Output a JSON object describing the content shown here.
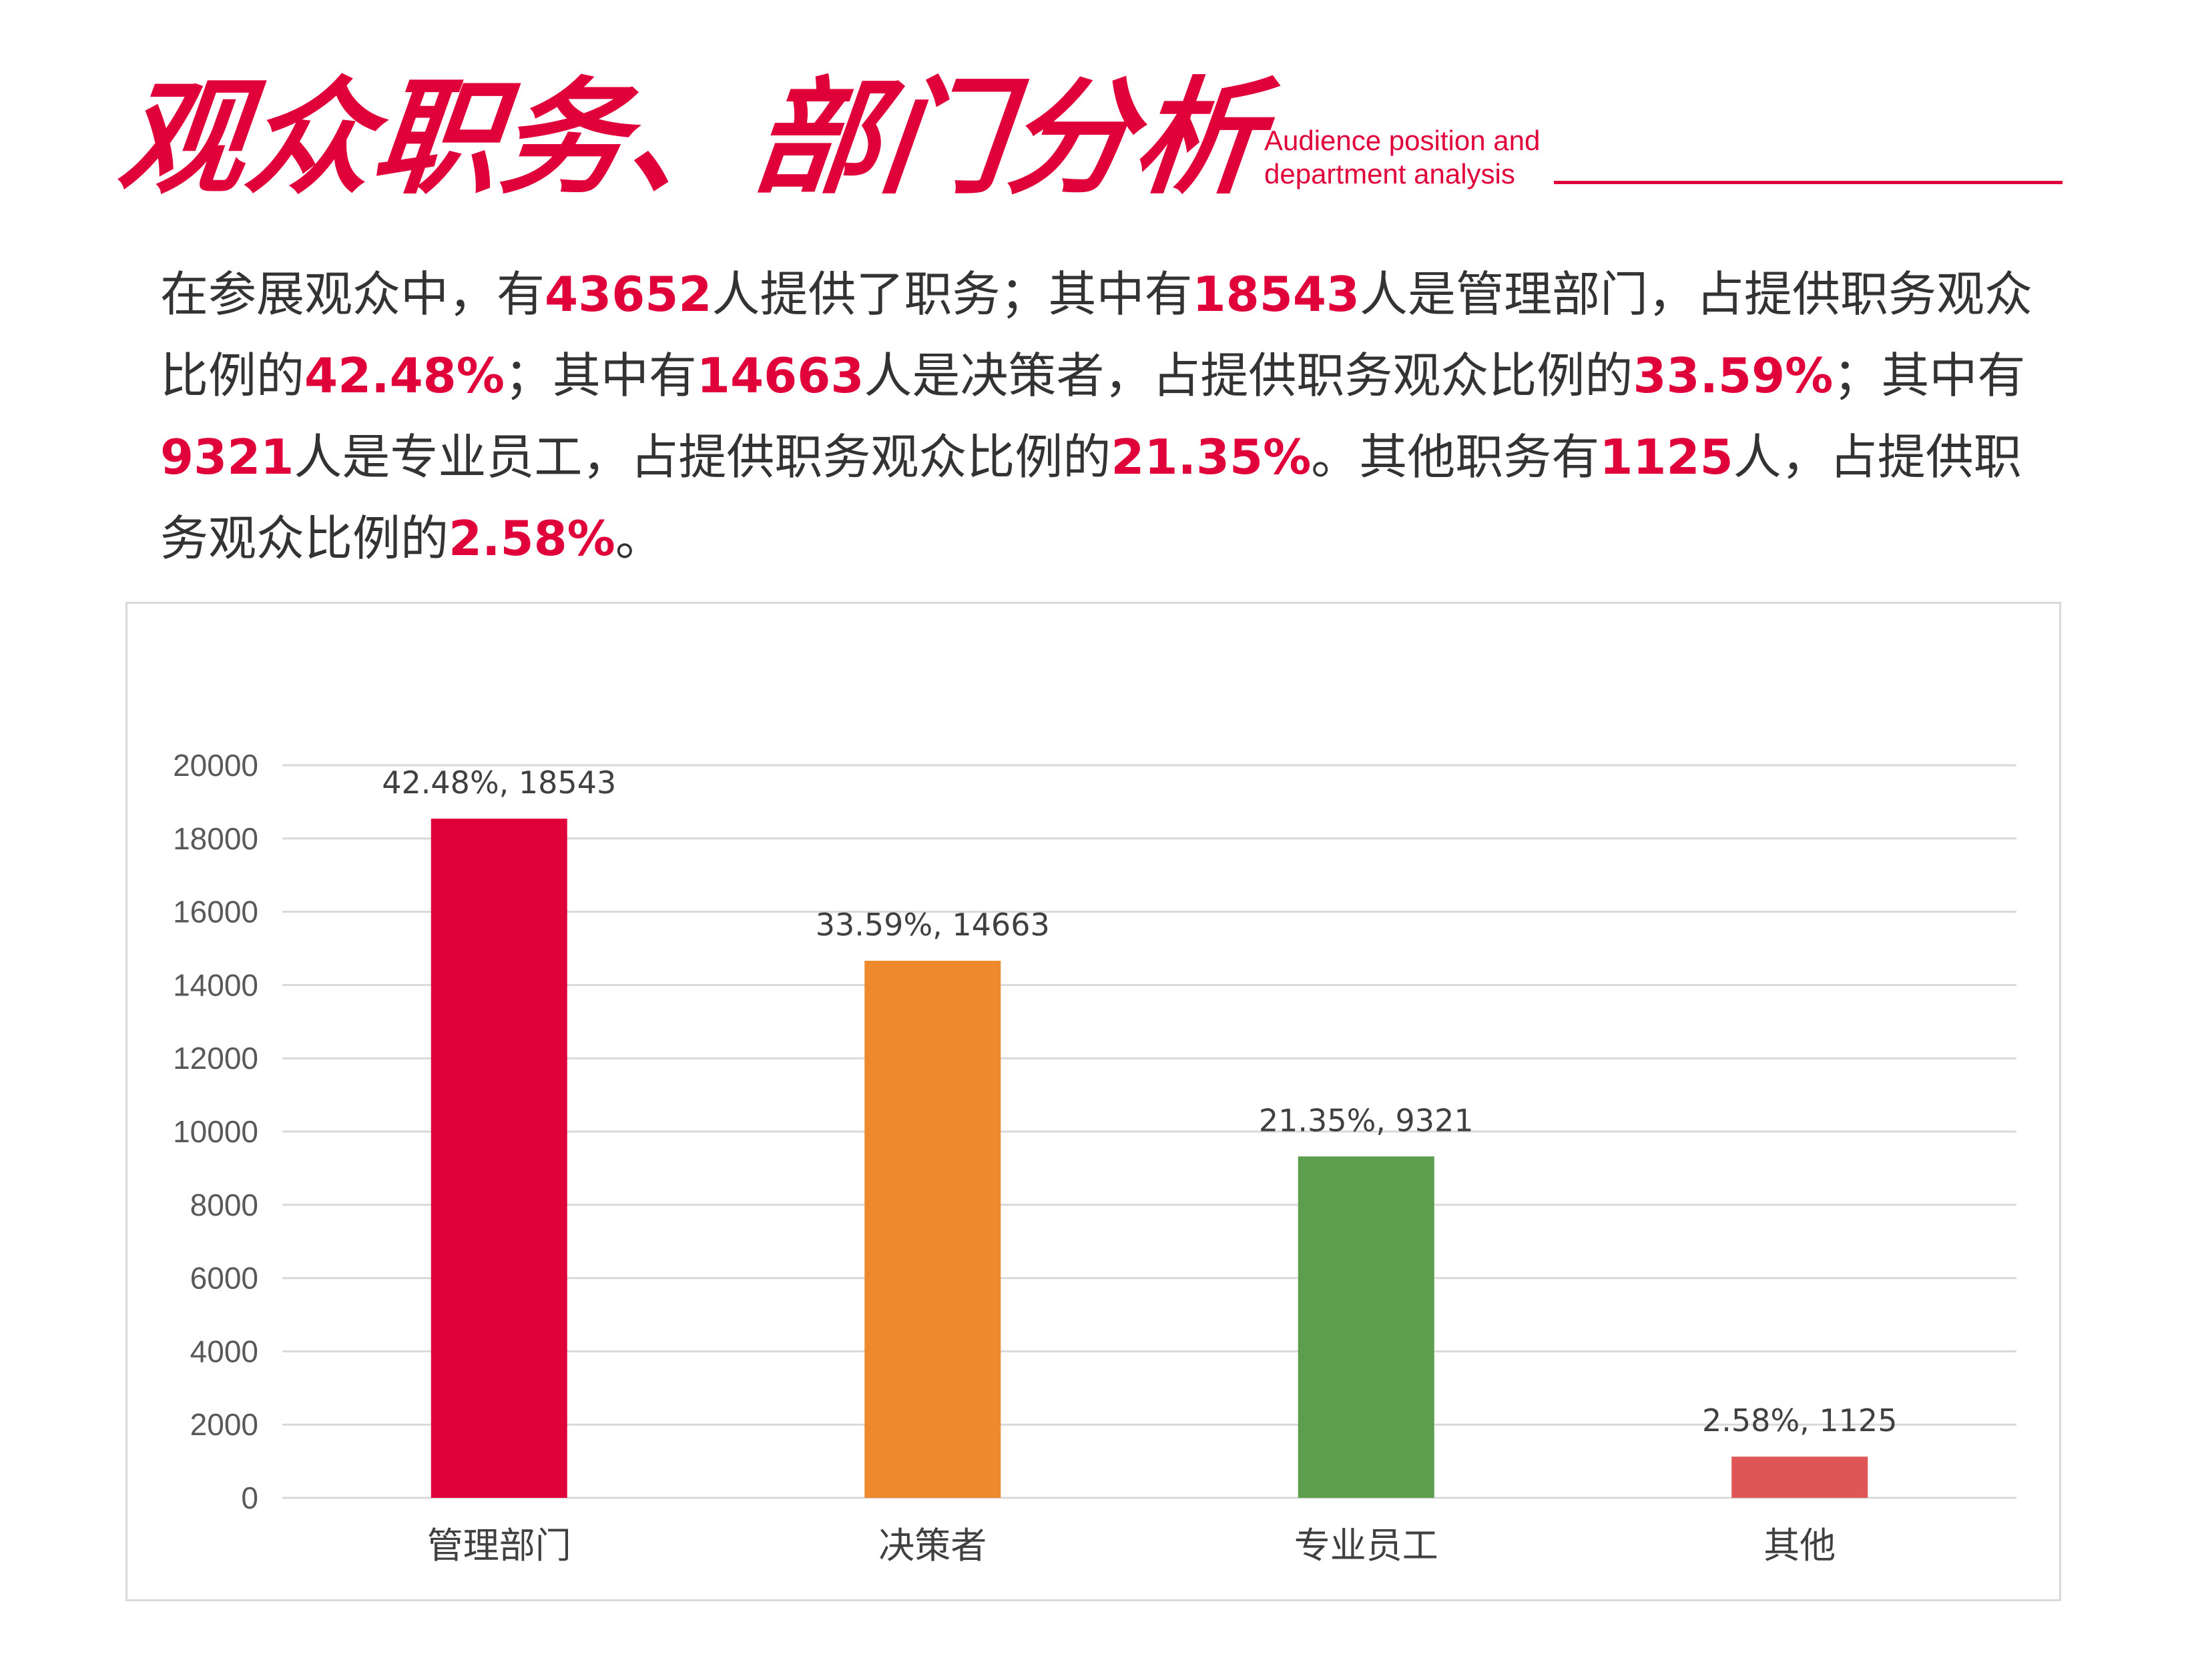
{
  "header": {
    "title": "观众职务、部门分析",
    "subtitle_line1": "Audience position and",
    "subtitle_line2": "department analysis"
  },
  "paragraph": {
    "s1": "在参展观众中，有",
    "n1": "43652",
    "s2": "人提供了职务；其中有",
    "n2": "18543",
    "s3": "人是管理部门，占提供职务观众比例的",
    "n3": "42.48%",
    "s4": "；其中有",
    "n4": "14663",
    "s5": "人是决策者，占提供职务观众比例的",
    "n5": "33.59%",
    "s6": "；其中有",
    "n6": "9321",
    "s7": "人是专业员工，占提供职务观众比例的",
    "n7": "21.35%",
    "s8": "。其他职务有",
    "n8": "1125",
    "s9": "人，占提供职务观众比例的",
    "n9": "2.58%",
    "s10": "。"
  },
  "colors": {
    "accent": "#e0003a",
    "bar_colors": [
      "#e0003a",
      "#ee8a2e",
      "#5a9e4e",
      "#e05555"
    ],
    "grid": "#d9d9d9"
  },
  "chart_data": {
    "type": "bar",
    "categories": [
      "管理部门",
      "决策者",
      "专业员工",
      "其他"
    ],
    "values": [
      18543,
      14663,
      9321,
      1125
    ],
    "data_labels": [
      "42.48%, 18543",
      "33.59%, 14663",
      "21.35%, 9321",
      "2.58%, 1125"
    ],
    "yticks": [
      "0",
      "2000",
      "4000",
      "6000",
      "8000",
      "10000",
      "12000",
      "14000",
      "16000",
      "18000",
      "20000"
    ],
    "ylim": [
      0,
      20000
    ],
    "grid": true,
    "legend": "none"
  }
}
